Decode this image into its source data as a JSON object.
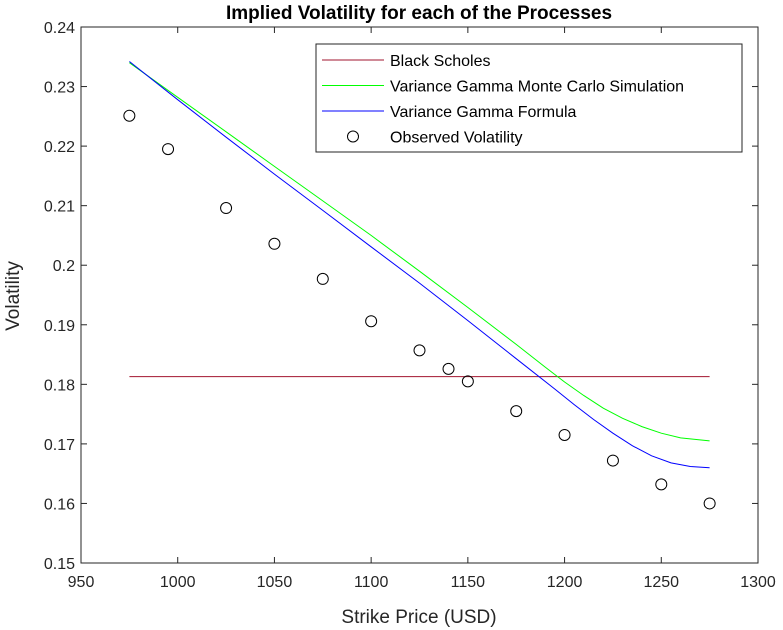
{
  "chart_data": {
    "type": "line",
    "title": "Implied Volatility for each of the Processes",
    "xlabel": "Strike Price (USD)",
    "ylabel": "Volatility",
    "xlim": [
      950,
      1300
    ],
    "ylim": [
      0.15,
      0.24
    ],
    "x_ticks": [
      "950",
      "1000",
      "1050",
      "1100",
      "1150",
      "1200",
      "1250",
      "1300"
    ],
    "y_ticks": [
      "0.15",
      "0.16",
      "0.17",
      "0.18",
      "0.19",
      "0.2",
      "0.21",
      "0.22",
      "0.23",
      "0.24"
    ],
    "grid": false,
    "legend_position": "top-right",
    "series": [
      {
        "name": "Black Scholes",
        "kind": "line",
        "color": "#a2142f",
        "x": [
          975,
          1275
        ],
        "y": [
          0.1813,
          0.1813
        ]
      },
      {
        "name": "Variance Gamma Monte Carlo Simulation",
        "kind": "line",
        "color": "#00ff00",
        "x": [
          975,
          1000,
          1025,
          1050,
          1075,
          1100,
          1125,
          1150,
          1175,
          1190,
          1200,
          1210,
          1220,
          1230,
          1240,
          1250,
          1260,
          1275
        ],
        "y": [
          0.234,
          0.2282,
          0.2224,
          0.2166,
          0.2108,
          0.205,
          0.199,
          0.1929,
          0.1867,
          0.1829,
          0.1804,
          0.1781,
          0.176,
          0.1743,
          0.1729,
          0.1718,
          0.171,
          0.1705
        ]
      },
      {
        "name": "Variance Gamma Formula",
        "kind": "line",
        "color": "#0000ff",
        "x": [
          975,
          1000,
          1025,
          1050,
          1075,
          1100,
          1125,
          1150,
          1175,
          1195,
          1205,
          1215,
          1225,
          1235,
          1245,
          1255,
          1265,
          1275
        ],
        "y": [
          0.2342,
          0.2278,
          0.2215,
          0.2153,
          0.2092,
          0.2031,
          0.197,
          0.1907,
          0.1843,
          0.1792,
          0.1766,
          0.1741,
          0.1718,
          0.1697,
          0.168,
          0.1668,
          0.1662,
          0.166
        ]
      },
      {
        "name": "Observed Volatility",
        "kind": "scatter",
        "color": "#000000",
        "x": [
          975,
          995,
          1025,
          1050,
          1075,
          1100,
          1125,
          1140,
          1150,
          1175,
          1200,
          1225,
          1250,
          1275
        ],
        "y": [
          0.2251,
          0.2195,
          0.2096,
          0.2036,
          0.1977,
          0.1906,
          0.1857,
          0.1826,
          0.1805,
          0.1755,
          0.1715,
          0.1672,
          0.1632,
          0.16
        ]
      }
    ]
  }
}
